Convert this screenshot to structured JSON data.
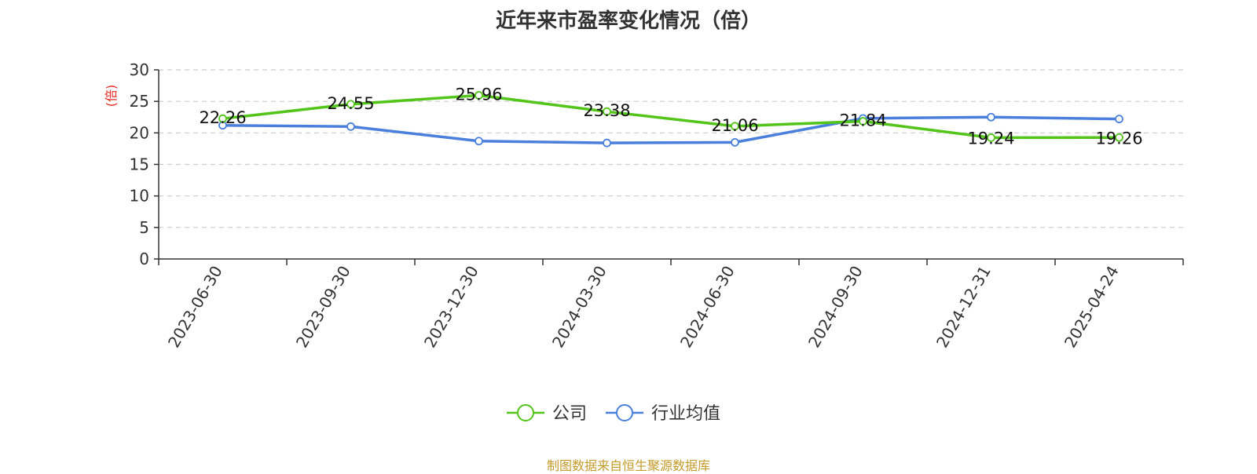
{
  "source_text": "制图数据来自恒生聚源数据库",
  "colors": {
    "company": "#52c41a",
    "industry": "#4a7fdc",
    "unit": "#e8281e",
    "grid": "#cccccc",
    "axis": "#333333"
  },
  "chart_data": {
    "type": "line",
    "title": "近年来市盈率变化情况（倍）",
    "ylabel": "(倍)",
    "xlabel": "",
    "ylim": [
      0,
      30
    ],
    "yticks": [
      0,
      5,
      10,
      15,
      20,
      25,
      30
    ],
    "grid": true,
    "legend_position": "bottom-center",
    "categories": [
      "2023-06-30",
      "2023-09-30",
      "2023-12-30",
      "2024-03-30",
      "2024-06-30",
      "2024-09-30",
      "2024-12-31",
      "2025-04-24"
    ],
    "series": [
      {
        "name": "公司",
        "values": [
          22.26,
          24.55,
          25.96,
          23.38,
          21.06,
          21.84,
          19.24,
          19.26
        ],
        "labels": [
          "22.26",
          "24.55",
          "25.96",
          "23.38",
          "21.06",
          "21.84",
          "19.24",
          "19.26"
        ]
      },
      {
        "name": "行业均值",
        "values": [
          21.2,
          21.0,
          18.7,
          18.4,
          18.5,
          22.3,
          22.5,
          22.2
        ]
      }
    ]
  }
}
